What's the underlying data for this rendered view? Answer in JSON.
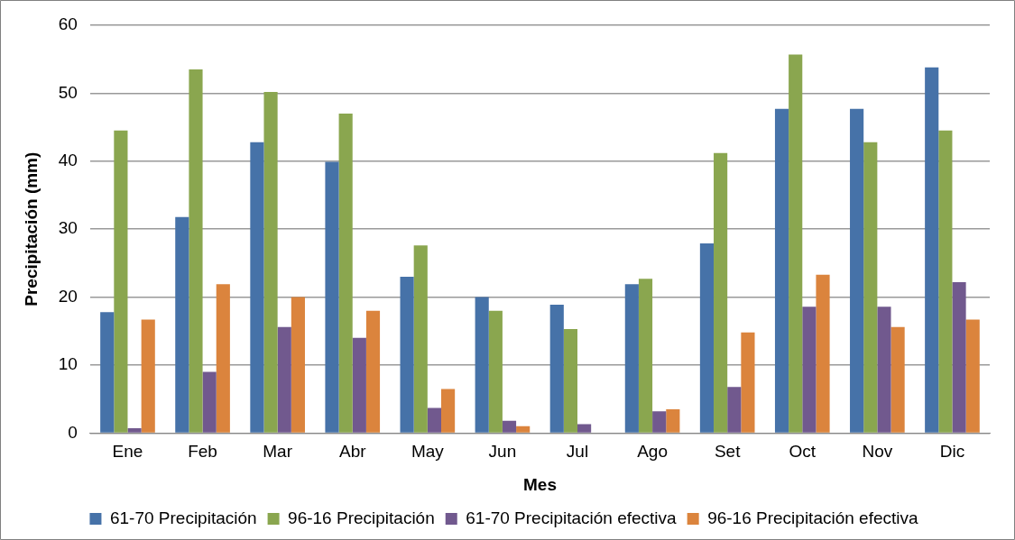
{
  "chart_data": {
    "type": "bar",
    "xlabel": "Mes",
    "ylabel": "Precipitación (mm)",
    "categories": [
      "Ene",
      "Feb",
      "Mar",
      "Abr",
      "May",
      "Jun",
      "Jul",
      "Ago",
      "Set",
      "Oct",
      "Nov",
      "Dic"
    ],
    "series": [
      {
        "name": "61-70 Precipitación",
        "color": "#4672a8",
        "values": [
          17.8,
          31.8,
          42.8,
          39.9,
          23,
          20,
          18.9,
          21.9,
          27.9,
          47.7,
          47.7,
          53.8
        ]
      },
      {
        "name": "96-16 Precipitación",
        "color": "#8aa64f",
        "values": [
          44.5,
          53.5,
          50.2,
          47,
          27.6,
          18,
          15.3,
          22.7,
          41.2,
          55.7,
          42.8,
          44.5
        ]
      },
      {
        "name": "61-70 Precipitación efectiva",
        "color": "#71598e",
        "values": [
          0.7,
          9,
          15.6,
          14,
          3.7,
          1.8,
          1.3,
          3.2,
          6.8,
          18.6,
          18.6,
          22.2
        ]
      },
      {
        "name": "96-16 Precipitación efectiva",
        "color": "#db843d",
        "values": [
          16.7,
          21.9,
          20,
          18,
          6.5,
          1,
          0,
          3.5,
          14.8,
          23.3,
          15.6,
          16.7
        ]
      }
    ],
    "ylim": [
      0,
      60
    ],
    "yticks": [
      0,
      10,
      20,
      30,
      40,
      50,
      60
    ],
    "grid": "y",
    "legend": "bottom"
  }
}
